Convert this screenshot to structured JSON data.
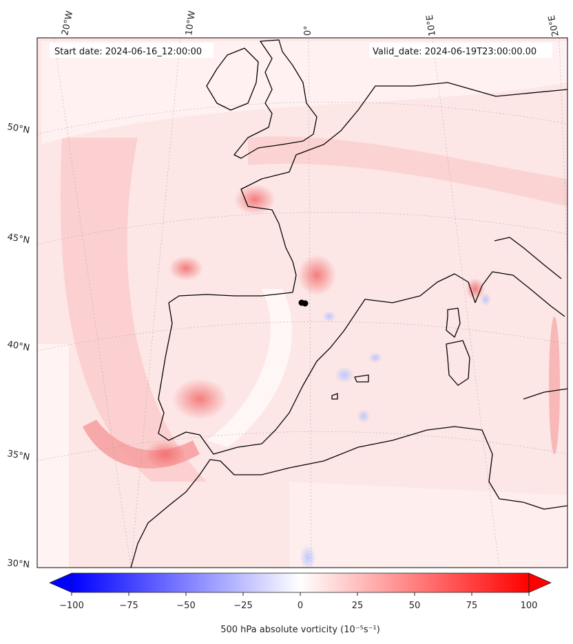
{
  "header": {
    "start_date": "Start date: 2024-06-16_12:00:00",
    "valid_date": "Valid_date: 2024-06-19T23:00:00.00"
  },
  "longitude_labels": [
    "20°W",
    "10°W",
    "0°",
    "10°E",
    "20°E"
  ],
  "latitude_labels": [
    "50°N",
    "45°N",
    "40°N",
    "35°N",
    "30°N"
  ],
  "colorbar": {
    "ticks": [
      "-100",
      "-75",
      "-50",
      "-25",
      "0",
      "25",
      "50",
      "75",
      "100"
    ],
    "min": -100,
    "max": 100,
    "label": "500 hPa absolute vorticity (10⁻⁵s⁻¹)",
    "colormap": "bwr",
    "extend": "both"
  },
  "map": {
    "region": "Western Europe / Iberia / Western Mediterranean",
    "marker_color": "#000000",
    "coastline_color": "#000000"
  }
}
